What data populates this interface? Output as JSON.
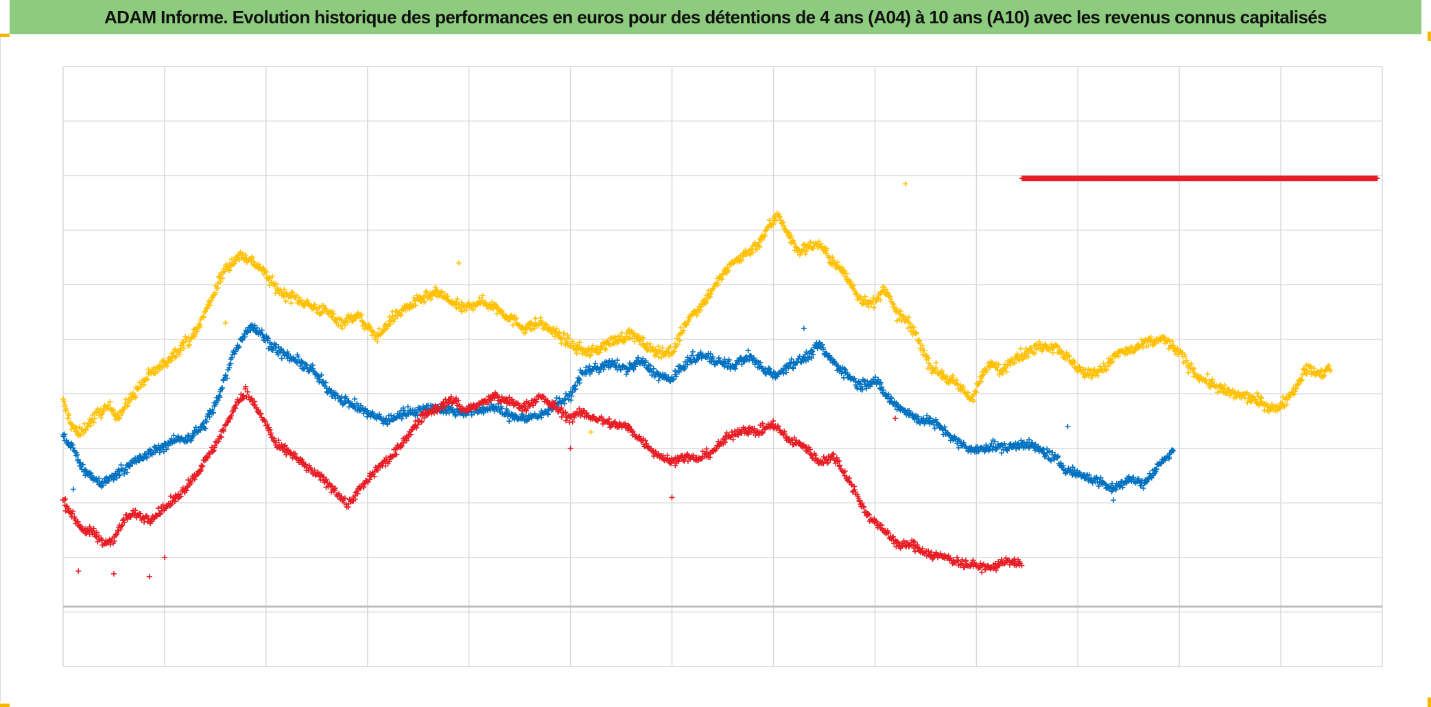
{
  "title": "ADAM Informe. Evolution historique des performances en euros pour des détentions de 4 ans (A04) à 10 ans (A10) avec les revenus connus capitalisés",
  "colors": {
    "title_bg": "#8dcb7e",
    "accent_corner": "#f5b800",
    "grid": "#d9d9d9",
    "axis": "#bfbfbf"
  },
  "chart_data": {
    "type": "scatter",
    "title": "ADAM Informe. Evolution historique des performances en euros pour des détentions de 4 ans (A04) à 10 ans (A10) avec les revenus connus capitalisés",
    "xlabel": "",
    "ylabel": "",
    "x_range": [
      0,
      13
    ],
    "y_range": [
      0,
      11
    ],
    "grid": true,
    "vertical_gridlines": 13,
    "horizontal_gridlines": 11,
    "axis_baseline_y": 1.1,
    "tick_labels_visible": false,
    "legend": "none",
    "marker": "plus",
    "series": [
      {
        "name": "yellow",
        "color": "#ffc000",
        "x": [
          0.0,
          0.08,
          0.15,
          0.25,
          0.35,
          0.45,
          0.55,
          0.7,
          0.85,
          1.0,
          1.15,
          1.3,
          1.45,
          1.6,
          1.75,
          1.85,
          1.95,
          2.05,
          2.15,
          2.3,
          2.45,
          2.6,
          2.75,
          2.9,
          3.0,
          3.1,
          3.25,
          3.4,
          3.55,
          3.7,
          3.85,
          3.95,
          4.1,
          4.25,
          4.4,
          4.55,
          4.7,
          4.9,
          5.05,
          5.2,
          5.4,
          5.6,
          5.8,
          6.0,
          6.15,
          6.3,
          6.45,
          6.6,
          6.75,
          6.85,
          6.95,
          7.05,
          7.15,
          7.25,
          7.35,
          7.45,
          7.55,
          7.7,
          7.85,
          8.0,
          8.1,
          8.2,
          8.3,
          8.4,
          8.55,
          8.7,
          8.85,
          8.95,
          9.05,
          9.15,
          9.25,
          9.35,
          9.5,
          9.65,
          9.8,
          9.95,
          10.1,
          10.25,
          10.4,
          10.55,
          10.7,
          10.85,
          11.0,
          11.1,
          11.2,
          11.35,
          11.5,
          11.65,
          11.8,
          11.95,
          12.1,
          12.25,
          12.4,
          12.5
        ],
        "y": [
          4.85,
          4.45,
          4.25,
          4.45,
          4.65,
          4.75,
          4.6,
          5.0,
          5.35,
          5.55,
          5.85,
          6.1,
          6.7,
          7.3,
          7.55,
          7.45,
          7.3,
          7.05,
          6.85,
          6.75,
          6.6,
          6.5,
          6.3,
          6.45,
          6.2,
          6.05,
          6.4,
          6.6,
          6.75,
          6.85,
          6.65,
          6.55,
          6.7,
          6.6,
          6.4,
          6.2,
          6.3,
          6.05,
          5.85,
          5.75,
          5.95,
          6.1,
          5.8,
          5.75,
          6.35,
          6.65,
          7.05,
          7.4,
          7.6,
          7.75,
          8.05,
          8.3,
          7.9,
          7.6,
          7.7,
          7.75,
          7.5,
          7.2,
          6.75,
          6.65,
          6.95,
          6.5,
          6.35,
          6.1,
          5.5,
          5.3,
          5.1,
          4.9,
          5.3,
          5.55,
          5.4,
          5.65,
          5.75,
          5.9,
          5.85,
          5.55,
          5.35,
          5.45,
          5.75,
          5.8,
          5.95,
          6.0,
          5.75,
          5.5,
          5.3,
          5.15,
          5.0,
          4.95,
          4.85,
          4.7,
          5.0,
          5.45,
          5.35,
          5.5
        ],
        "noise": 0.1,
        "outliers": [
          [
            3.9,
            7.4
          ],
          [
            8.3,
            8.85
          ],
          [
            5.2,
            4.3
          ],
          [
            1.6,
            6.3
          ]
        ]
      },
      {
        "name": "blue",
        "color": "#0070c0",
        "x": [
          0.0,
          0.1,
          0.2,
          0.3,
          0.4,
          0.5,
          0.65,
          0.8,
          0.95,
          1.1,
          1.25,
          1.4,
          1.55,
          1.65,
          1.75,
          1.85,
          1.95,
          2.05,
          2.15,
          2.3,
          2.45,
          2.6,
          2.75,
          2.9,
          3.05,
          3.2,
          3.35,
          3.5,
          3.65,
          3.8,
          3.95,
          4.1,
          4.25,
          4.4,
          4.55,
          4.7,
          4.85,
          5.0,
          5.1,
          5.2,
          5.3,
          5.4,
          5.55,
          5.7,
          5.85,
          6.0,
          6.15,
          6.3,
          6.45,
          6.6,
          6.75,
          6.9,
          7.05,
          7.15,
          7.25,
          7.35,
          7.45,
          7.55,
          7.7,
          7.85,
          8.0,
          8.1,
          8.2,
          8.3,
          8.4,
          8.55,
          8.7,
          8.85,
          9.0,
          9.15,
          9.3,
          9.45,
          9.6,
          9.75,
          9.9,
          10.05,
          10.2,
          10.35,
          10.5,
          10.65,
          10.8,
          10.95
        ],
        "y": [
          4.2,
          4.0,
          3.6,
          3.45,
          3.35,
          3.5,
          3.7,
          3.85,
          4.0,
          4.15,
          4.2,
          4.45,
          5.0,
          5.6,
          6.0,
          6.25,
          6.1,
          5.9,
          5.75,
          5.6,
          5.45,
          5.1,
          4.9,
          4.75,
          4.6,
          4.5,
          4.65,
          4.7,
          4.75,
          4.7,
          4.65,
          4.7,
          4.75,
          4.6,
          4.55,
          4.6,
          4.8,
          4.95,
          5.35,
          5.45,
          5.5,
          5.55,
          5.45,
          5.6,
          5.35,
          5.25,
          5.6,
          5.7,
          5.6,
          5.5,
          5.7,
          5.45,
          5.35,
          5.55,
          5.6,
          5.7,
          5.9,
          5.65,
          5.4,
          5.15,
          5.25,
          5.0,
          4.8,
          4.7,
          4.55,
          4.5,
          4.3,
          4.05,
          3.95,
          4.05,
          4.0,
          4.1,
          4.0,
          3.85,
          3.6,
          3.5,
          3.4,
          3.25,
          3.45,
          3.35,
          3.7,
          3.95
        ],
        "noise": 0.09,
        "outliers": [
          [
            0.1,
            3.25
          ],
          [
            7.3,
            6.2
          ],
          [
            9.9,
            4.4
          ],
          [
            10.35,
            3.05
          ]
        ]
      },
      {
        "name": "red",
        "color": "#e81c24",
        "x": [
          0.0,
          0.1,
          0.2,
          0.3,
          0.4,
          0.5,
          0.6,
          0.7,
          0.85,
          1.0,
          1.15,
          1.3,
          1.45,
          1.6,
          1.7,
          1.8,
          1.9,
          2.0,
          2.1,
          2.25,
          2.4,
          2.55,
          2.7,
          2.8,
          2.9,
          3.0,
          3.1,
          3.25,
          3.4,
          3.55,
          3.7,
          3.85,
          3.95,
          4.1,
          4.25,
          4.4,
          4.55,
          4.7,
          4.85,
          5.0,
          5.1,
          5.25,
          5.4,
          5.55,
          5.7,
          5.85,
          6.0,
          6.1,
          6.25,
          6.4,
          6.55,
          6.7,
          6.85,
          7.0,
          7.15,
          7.3,
          7.45,
          7.6,
          7.75,
          7.9,
          8.05,
          8.15,
          8.25,
          8.35,
          8.45,
          8.55,
          8.7,
          8.85,
          9.0,
          9.15,
          9.3,
          9.45
        ],
        "y": [
          3.05,
          2.75,
          2.5,
          2.45,
          2.25,
          2.35,
          2.7,
          2.8,
          2.7,
          2.9,
          3.15,
          3.5,
          3.9,
          4.4,
          4.8,
          5.05,
          4.75,
          4.45,
          4.05,
          3.9,
          3.65,
          3.45,
          3.2,
          2.95,
          3.2,
          3.4,
          3.65,
          3.85,
          4.25,
          4.6,
          4.75,
          4.9,
          4.7,
          4.8,
          4.95,
          4.85,
          4.75,
          4.95,
          4.75,
          4.55,
          4.65,
          4.55,
          4.45,
          4.4,
          4.15,
          3.9,
          3.75,
          3.85,
          3.8,
          3.95,
          4.2,
          4.35,
          4.3,
          4.45,
          4.15,
          4.05,
          3.75,
          3.85,
          3.4,
          2.85,
          2.55,
          2.4,
          2.2,
          2.25,
          2.15,
          2.05,
          2.0,
          1.9,
          1.85,
          1.8,
          1.95,
          1.85
        ],
        "noise": 0.08,
        "outliers": [
          [
            0.15,
            1.75
          ],
          [
            0.5,
            1.7
          ],
          [
            0.85,
            1.65
          ],
          [
            1.0,
            2.0
          ],
          [
            5.0,
            4.0
          ],
          [
            6.0,
            3.1
          ],
          [
            8.2,
            4.55
          ]
        ]
      },
      {
        "name": "red-flat",
        "color": "#e81c24",
        "x": [
          9.45,
          12.95
        ],
        "y": [
          8.95,
          8.95
        ],
        "noise": 0.0,
        "dense": true
      }
    ]
  }
}
